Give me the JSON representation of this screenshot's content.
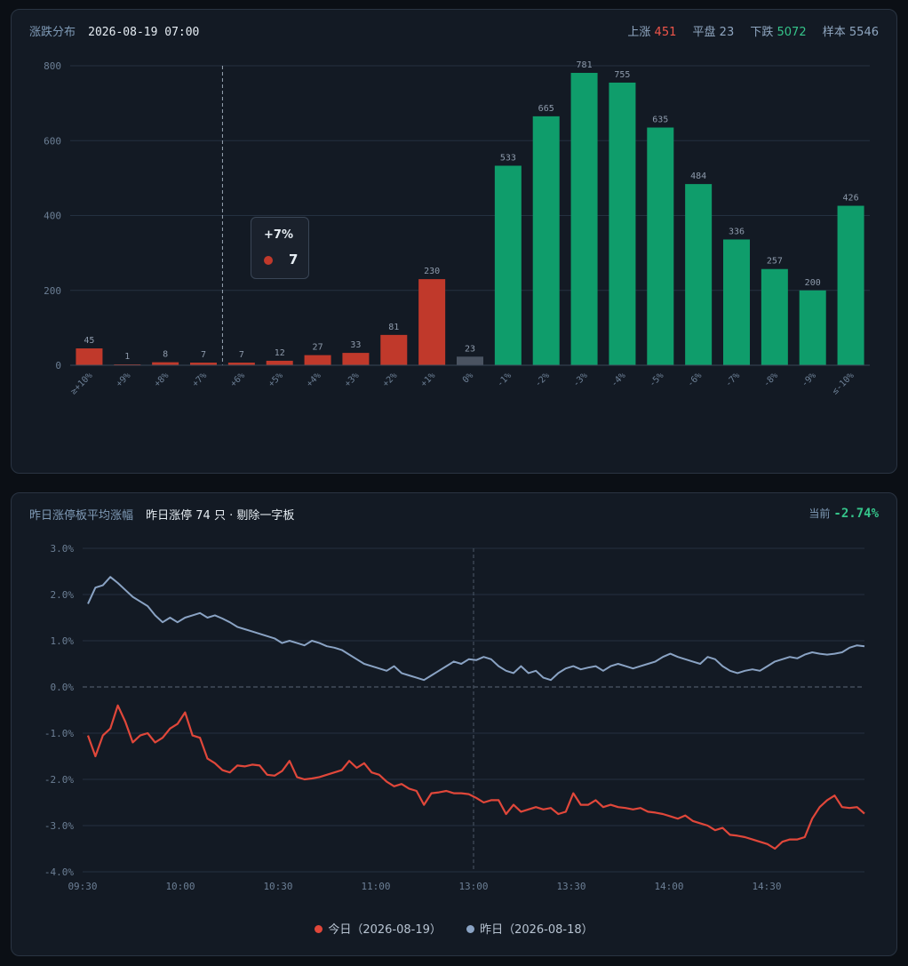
{
  "panel1": {
    "title": "涨跌分布",
    "datetime": "2026-08-19 07:00",
    "stats": [
      {
        "label": "上涨",
        "value": "451",
        "tone": "up"
      },
      {
        "label": "平盘",
        "value": "23",
        "tone": "flat"
      },
      {
        "label": "下跌",
        "value": "5072",
        "tone": "down"
      },
      {
        "label": "样本",
        "value": "5546",
        "tone": "flat"
      }
    ],
    "tooltip": {
      "category": "+7%",
      "value": "7"
    }
  },
  "panel2": {
    "title": "昨日涨停板平均涨幅",
    "subtitle": "昨日涨停 74 只 · 剔除一字板",
    "current_label": "当前",
    "current_value": "-2.74%",
    "legend": [
      {
        "label": "今日（2026-08-19）",
        "color": "#e0473a"
      },
      {
        "label": "昨日（2026-08-18）",
        "color": "#8aa3c4"
      }
    ]
  },
  "colors": {
    "up": "#c0392b",
    "down": "#0f9d6b",
    "flat": "#4a5361",
    "today": "#e0473a",
    "yesterday": "#8aa3c4",
    "grid": "#243040"
  },
  "chart_data": [
    {
      "type": "bar",
      "categories": [
        "≥+10%",
        "+9%",
        "+8%",
        "+7%",
        "+6%",
        "+5%",
        "+4%",
        "+3%",
        "+2%",
        "+1%",
        "0%",
        "-1%",
        "-2%",
        "-3%",
        "-4%",
        "-5%",
        "-6%",
        "-7%",
        "-8%",
        "-9%",
        "≤-10%"
      ],
      "values": [
        45,
        1,
        8,
        7,
        7,
        12,
        27,
        33,
        81,
        230,
        23,
        533,
        665,
        781,
        755,
        635,
        484,
        336,
        257,
        200,
        426
      ],
      "yticks": [
        0,
        200,
        400,
        600,
        800
      ],
      "ylim": [
        0,
        800
      ],
      "highlight_category": "+7%"
    },
    {
      "type": "line",
      "x_ticks": [
        "09:30",
        "10:00",
        "10:30",
        "11:00",
        "13:00",
        "13:30",
        "14:00",
        "14:30"
      ],
      "y_ticks": [
        "3.0%",
        "2.0%",
        "1.0%",
        "0.0%",
        "-1.0%",
        "-2.0%",
        "-3.0%",
        "-4.0%"
      ],
      "ylim": [
        -4.0,
        3.0
      ],
      "series": [
        {
          "name": "今日（2026-08-19）",
          "values": [
            -1.05,
            -1.5,
            -1.05,
            -0.9,
            -0.4,
            -0.75,
            -1.2,
            -1.05,
            -1.0,
            -1.2,
            -1.1,
            -0.9,
            -0.8,
            -0.55,
            -1.05,
            -1.1,
            -1.55,
            -1.65,
            -1.8,
            -1.85,
            -1.7,
            -1.72,
            -1.68,
            -1.7,
            -1.9,
            -1.92,
            -1.82,
            -1.6,
            -1.95,
            -2.0,
            -1.98,
            -1.95,
            -1.9,
            -1.85,
            -1.8,
            -1.6,
            -1.75,
            -1.65,
            -1.85,
            -1.9,
            -2.05,
            -2.15,
            -2.1,
            -2.2,
            -2.25,
            -2.55,
            -2.3,
            -2.28,
            -2.25,
            -2.3,
            -2.3,
            -2.32,
            -2.4,
            -2.5,
            -2.45,
            -2.45,
            -2.75,
            -2.55,
            -2.7,
            -2.65,
            -2.6,
            -2.65,
            -2.62,
            -2.75,
            -2.7,
            -2.3,
            -2.55,
            -2.55,
            -2.45,
            -2.6,
            -2.55,
            -2.6,
            -2.62,
            -2.65,
            -2.62,
            -2.7,
            -2.72,
            -2.75,
            -2.8,
            -2.85,
            -2.78,
            -2.9,
            -2.95,
            -3.0,
            -3.1,
            -3.05,
            -3.2,
            -3.22,
            -3.25,
            -3.3,
            -3.35,
            -3.4,
            -3.5,
            -3.35,
            -3.3,
            -3.3,
            -3.25,
            -2.85,
            -2.6,
            -2.45,
            -2.35,
            -2.6,
            -2.62,
            -2.6,
            -2.74
          ]
        },
        {
          "name": "昨日（2026-08-18）",
          "values": [
            1.8,
            2.15,
            2.2,
            2.38,
            2.25,
            2.1,
            1.95,
            1.85,
            1.75,
            1.55,
            1.4,
            1.5,
            1.4,
            1.5,
            1.55,
            1.6,
            1.5,
            1.55,
            1.48,
            1.4,
            1.3,
            1.25,
            1.2,
            1.15,
            1.1,
            1.05,
            0.95,
            1.0,
            0.95,
            0.9,
            1.0,
            0.95,
            0.88,
            0.85,
            0.8,
            0.7,
            0.6,
            0.5,
            0.45,
            0.4,
            0.35,
            0.45,
            0.3,
            0.25,
            0.2,
            0.15,
            0.25,
            0.35,
            0.45,
            0.55,
            0.5,
            0.6,
            0.58,
            0.65,
            0.6,
            0.45,
            0.35,
            0.3,
            0.45,
            0.3,
            0.35,
            0.2,
            0.15,
            0.3,
            0.4,
            0.45,
            0.38,
            0.42,
            0.45,
            0.35,
            0.45,
            0.5,
            0.45,
            0.4,
            0.45,
            0.5,
            0.55,
            0.65,
            0.72,
            0.65,
            0.6,
            0.55,
            0.5,
            0.65,
            0.6,
            0.45,
            0.35,
            0.3,
            0.35,
            0.38,
            0.35,
            0.45,
            0.55,
            0.6,
            0.65,
            0.62,
            0.7,
            0.75,
            0.72,
            0.7,
            0.72,
            0.75,
            0.85,
            0.9,
            0.88
          ]
        }
      ]
    }
  ]
}
